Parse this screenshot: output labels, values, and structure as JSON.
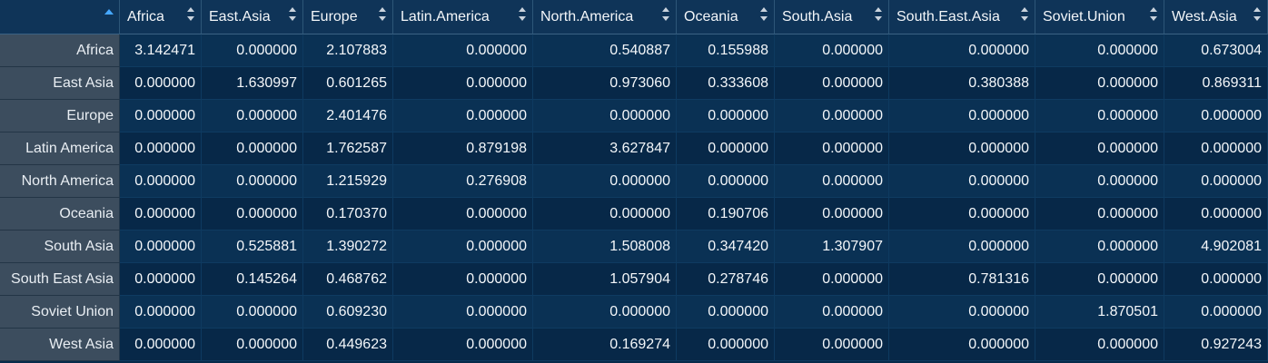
{
  "table": {
    "columns": [
      "Africa",
      "East.Asia",
      "Europe",
      "Latin.America",
      "North.America",
      "Oceania",
      "South.Asia",
      "South.East.Asia",
      "Soviet.Union",
      "West.Asia"
    ],
    "rows": [
      {
        "label": "Africa",
        "values": [
          "3.142471",
          "0.000000",
          "2.107883",
          "0.000000",
          "0.540887",
          "0.155988",
          "0.000000",
          "0.000000",
          "0.000000",
          "0.673004"
        ]
      },
      {
        "label": "East Asia",
        "values": [
          "0.000000",
          "1.630997",
          "0.601265",
          "0.000000",
          "0.973060",
          "0.333608",
          "0.000000",
          "0.380388",
          "0.000000",
          "0.869311"
        ]
      },
      {
        "label": "Europe",
        "values": [
          "0.000000",
          "0.000000",
          "2.401476",
          "0.000000",
          "0.000000",
          "0.000000",
          "0.000000",
          "0.000000",
          "0.000000",
          "0.000000"
        ]
      },
      {
        "label": "Latin America",
        "values": [
          "0.000000",
          "0.000000",
          "1.762587",
          "0.879198",
          "3.627847",
          "0.000000",
          "0.000000",
          "0.000000",
          "0.000000",
          "0.000000"
        ]
      },
      {
        "label": "North America",
        "values": [
          "0.000000",
          "0.000000",
          "1.215929",
          "0.276908",
          "0.000000",
          "0.000000",
          "0.000000",
          "0.000000",
          "0.000000",
          "0.000000"
        ]
      },
      {
        "label": "Oceania",
        "values": [
          "0.000000",
          "0.000000",
          "0.170370",
          "0.000000",
          "0.000000",
          "0.190706",
          "0.000000",
          "0.000000",
          "0.000000",
          "0.000000"
        ]
      },
      {
        "label": "South Asia",
        "values": [
          "0.000000",
          "0.525881",
          "1.390272",
          "0.000000",
          "1.508008",
          "0.347420",
          "1.307907",
          "0.000000",
          "0.000000",
          "4.902081"
        ]
      },
      {
        "label": "South East Asia",
        "values": [
          "0.000000",
          "0.145264",
          "0.468762",
          "0.000000",
          "1.057904",
          "0.278746",
          "0.000000",
          "0.781316",
          "0.000000",
          "0.000000"
        ]
      },
      {
        "label": "Soviet Union",
        "values": [
          "0.000000",
          "0.000000",
          "0.609230",
          "0.000000",
          "0.000000",
          "0.000000",
          "0.000000",
          "0.000000",
          "1.870501",
          "0.000000"
        ]
      },
      {
        "label": "West Asia",
        "values": [
          "0.000000",
          "0.000000",
          "0.449623",
          "0.000000",
          "0.169274",
          "0.000000",
          "0.000000",
          "0.000000",
          "0.000000",
          "0.927243"
        ]
      }
    ]
  },
  "icons": {
    "sort_active": "sort-ascending-icon",
    "sort_column": "sort-arrows-icon"
  },
  "colors": {
    "accent": "#46a8ff",
    "header_bg": "#0f3458",
    "row_header_bg": "#3c4d5e"
  }
}
